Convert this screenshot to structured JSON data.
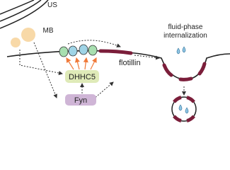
{
  "nodes": [
    {
      "id": "us",
      "label": "US"
    },
    {
      "id": "mb",
      "label": "MB"
    },
    {
      "id": "dhhc5",
      "label": "DHHC5"
    },
    {
      "id": "fyn",
      "label": "Fyn"
    },
    {
      "id": "flotillin",
      "label": "flotillin"
    }
  ],
  "annotation": {
    "lines": [
      "fluid-phase",
      "internalization"
    ]
  }
}
